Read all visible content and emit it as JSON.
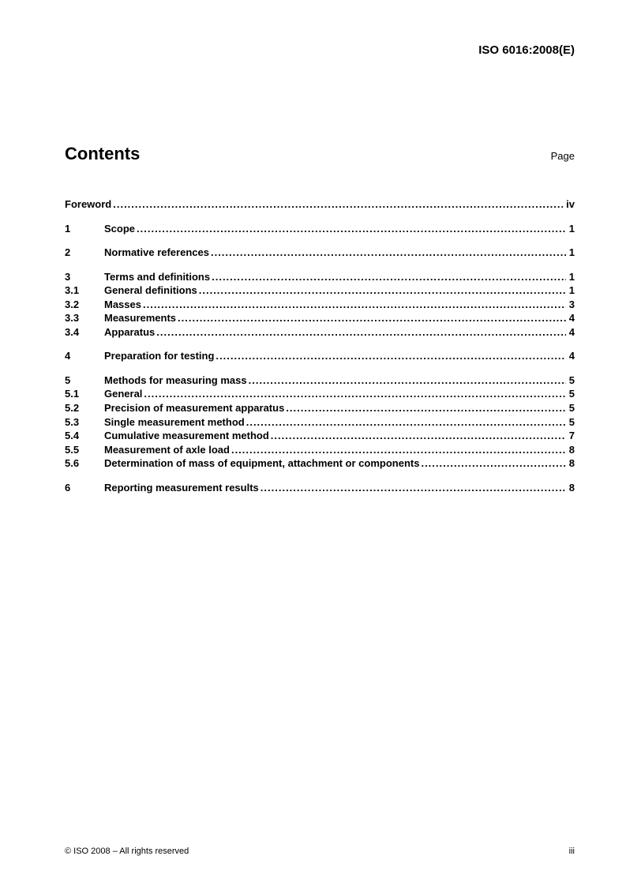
{
  "header": {
    "doc_id": "ISO 6016:2008(E)"
  },
  "heading": {
    "title": "Contents",
    "page_label": "Page"
  },
  "toc": {
    "groups": [
      [
        {
          "num": "",
          "title": "Foreword",
          "page": "iv",
          "noindent": true
        }
      ],
      [
        {
          "num": "1",
          "title": "Scope",
          "page": "1"
        }
      ],
      [
        {
          "num": "2",
          "title": "Normative references",
          "page": "1"
        }
      ],
      [
        {
          "num": "3",
          "title": "Terms and definitions",
          "page": "1"
        },
        {
          "num": "3.1",
          "title": "General definitions",
          "page": "1"
        },
        {
          "num": "3.2",
          "title": "Masses",
          "page": "3"
        },
        {
          "num": "3.3",
          "title": "Measurements",
          "page": "4"
        },
        {
          "num": "3.4",
          "title": "Apparatus",
          "page": "4"
        }
      ],
      [
        {
          "num": "4",
          "title": "Preparation for testing",
          "page": "4"
        }
      ],
      [
        {
          "num": "5",
          "title": "Methods for measuring mass",
          "page": "5"
        },
        {
          "num": "5.1",
          "title": "General",
          "page": "5"
        },
        {
          "num": "5.2",
          "title": "Precision of measurement apparatus",
          "page": "5"
        },
        {
          "num": "5.3",
          "title": "Single measurement method",
          "page": "5"
        },
        {
          "num": "5.4",
          "title": "Cumulative measurement method",
          "page": "7"
        },
        {
          "num": "5.5",
          "title": "Measurement of axle load",
          "page": "8"
        },
        {
          "num": "5.6",
          "title": "Determination of mass of equipment, attachment or components",
          "page": "8"
        }
      ],
      [
        {
          "num": "6",
          "title": "Reporting measurement results",
          "page": "8"
        }
      ]
    ]
  },
  "footer": {
    "copyright": "© ISO 2008 – All rights reserved",
    "page_num": "iii"
  }
}
